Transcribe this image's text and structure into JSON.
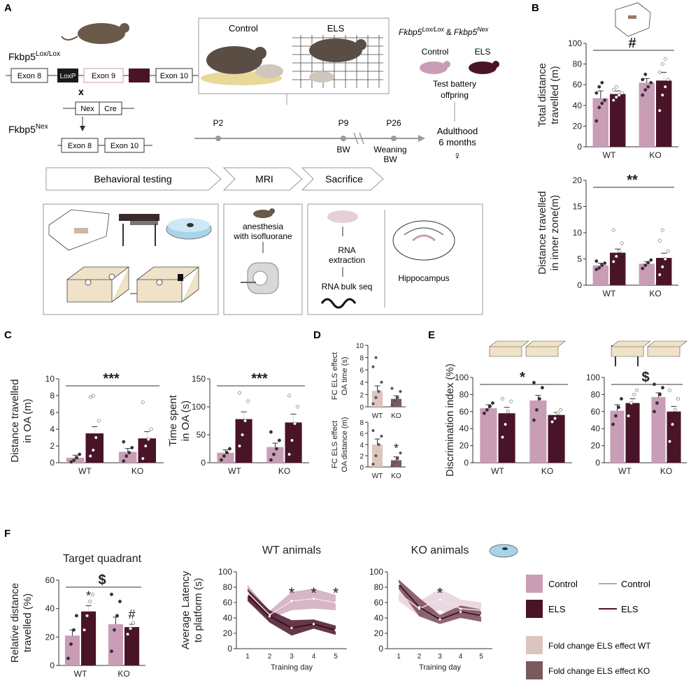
{
  "panel_letters": [
    "A",
    "B",
    "C",
    "D",
    "E",
    "F"
  ],
  "colors": {
    "control": "#c99db5",
    "els": "#4a1428",
    "fc_wt": "#dcc5bd",
    "fc_ko": "#7a5a5f",
    "line": "#333333",
    "grey": "#b5b5b5"
  },
  "panelA": {
    "lox_label": "Fkbp5",
    "lox_sup": "Lox/Lox",
    "exons_lox": [
      "Exon 8",
      "LoxP",
      "Exon 9",
      "Exon 10"
    ],
    "cross": "x",
    "cre": [
      "Nex",
      "Cre"
    ],
    "nex_label": "Fkbp5",
    "nex_sup": "Nex",
    "exons_nex": [
      "Exon 8",
      "Exon 10"
    ],
    "box_control": "Control",
    "box_els": "ELS",
    "genotype_line": [
      "Fkbp5",
      "Lox/Lox",
      "&",
      "Fkbp5",
      "Nex"
    ],
    "offspring_control": "Control",
    "offspring_els": "ELS",
    "test_battery": [
      "Test battery",
      "offpring"
    ],
    "timeline": [
      "P2",
      "P9",
      "P26"
    ],
    "timeline_sub": [
      "BW",
      "Weaning",
      "BW"
    ],
    "adulthood": [
      "Adulthood",
      "6 months",
      "♀"
    ],
    "stages": [
      "Behavioral testing",
      "MRI",
      "Sacrifice"
    ],
    "mri_text": [
      "anesthesia",
      "with isofluorane"
    ],
    "sac_text": [
      "RNA",
      "extraction",
      "RNA bulk seq"
    ],
    "hippocampus": "Hippocampus"
  },
  "chart_data": [
    {
      "id": "B1",
      "type": "bar",
      "ylabel": [
        "Total distance",
        "travelled (m)"
      ],
      "ylim": [
        0,
        100
      ],
      "ticks": [
        0,
        20,
        40,
        60,
        80,
        100
      ],
      "categories": [
        "WT",
        "KO"
      ],
      "series": [
        {
          "values": [
            47,
            51
          ]
        },
        {
          "values": [
            62,
            64
          ]
        }
      ],
      "errors": [
        [
          7,
          3
        ],
        [
          4,
          8
        ]
      ],
      "points": [
        [
          [
            25,
            38,
            42,
            45,
            52,
            58,
            62
          ],
          [
            45,
            48,
            50,
            52,
            55,
            58
          ]
        ],
        [
          [
            50,
            55,
            58,
            62,
            65,
            70
          ],
          [
            35,
            50,
            58,
            65,
            72,
            80,
            85
          ]
        ]
      ],
      "annotation": "#"
    },
    {
      "id": "B2",
      "type": "bar",
      "ylabel": [
        "Distance travelled",
        "in inner zone(m)"
      ],
      "ylim": [
        0,
        20
      ],
      "ticks": [
        0,
        5,
        10,
        15,
        20
      ],
      "categories": [
        "WT",
        "KO"
      ],
      "series": [
        {
          "values": [
            3.8,
            6.2
          ]
        },
        {
          "values": [
            4.1,
            5.2
          ]
        }
      ],
      "errors": [
        [
          0.4,
          0.7
        ],
        [
          0.4,
          0.9
        ]
      ],
      "points": [
        [
          [
            3,
            3.3,
            3.8,
            4.2,
            4.6
          ],
          [
            4.5,
            5.5,
            6.5,
            8,
            10.5
          ]
        ],
        [
          [
            3.2,
            3.8,
            4.3,
            4.8
          ],
          [
            2,
            3.5,
            5,
            6.5,
            8.5,
            10.5
          ]
        ]
      ],
      "annotation": "**"
    },
    {
      "id": "C1",
      "type": "bar",
      "ylabel": [
        "Distance travelled",
        "in OA (m)"
      ],
      "ylim": [
        0,
        10
      ],
      "ticks": [
        0,
        2,
        4,
        6,
        8,
        10
      ],
      "categories": [
        "WT",
        "KO"
      ],
      "series": [
        {
          "values": [
            0.6,
            3.5
          ]
        },
        {
          "values": [
            1.3,
            2.9
          ]
        }
      ],
      "errors": [
        [
          0.3,
          0.8
        ],
        [
          0.4,
          0.8
        ]
      ],
      "points": [
        [
          [
            0.1,
            0.3,
            0.6,
            1.0
          ],
          [
            0.8,
            1.5,
            3,
            5,
            7.8,
            8
          ]
        ],
        [
          [
            0.2,
            0.8,
            1.2,
            1.8,
            2.5
          ],
          [
            0.5,
            2,
            2.8,
            4,
            7.2
          ]
        ]
      ],
      "annotation": "***"
    },
    {
      "id": "C2",
      "type": "bar",
      "ylabel": [
        "Time spent",
        "in OA (s)"
      ],
      "ylim": [
        0,
        150
      ],
      "ticks": [
        0,
        50,
        100,
        150
      ],
      "categories": [
        "WT",
        "KO"
      ],
      "series": [
        {
          "values": [
            18,
            78
          ]
        },
        {
          "values": [
            28,
            72
          ]
        }
      ],
      "errors": [
        [
          5,
          13
        ],
        [
          7,
          15
        ]
      ],
      "points": [
        [
          [
            5,
            12,
            18,
            25
          ],
          [
            30,
            50,
            75,
            110,
            125
          ]
        ],
        [
          [
            5,
            15,
            25,
            40,
            55
          ],
          [
            15,
            40,
            70,
            100,
            120
          ]
        ]
      ],
      "annotation": "***"
    },
    {
      "id": "D1",
      "type": "bar",
      "ylabel": [
        "FC ELS effect",
        "OA time (s)"
      ],
      "ylim": [
        0,
        10
      ],
      "ticks": [
        0,
        2,
        4,
        6,
        8,
        10
      ],
      "categories": [
        "WT",
        "KO"
      ],
      "series": [
        {
          "values": [
            2.6,
            1.3
          ]
        }
      ],
      "errors": [
        [
          0.8,
          0.5
        ]
      ],
      "points": [
        [
          [
            0.5,
            1.5,
            2.5,
            4,
            6.5,
            8
          ],
          [
            0.3,
            1,
            1.5,
            2.5,
            3
          ]
        ]
      ],
      "annotation": ""
    },
    {
      "id": "D2",
      "type": "bar",
      "ylabel": [
        "FC ELS effect",
        "OA distance (m)"
      ],
      "ylim": [
        0,
        8
      ],
      "ticks": [
        0,
        2,
        4,
        6,
        8
      ],
      "categories": [
        "WT",
        "KO"
      ],
      "series": [
        {
          "values": [
            4.0,
            1.2
          ]
        }
      ],
      "errors": [
        [
          1.0,
          0.6
        ]
      ],
      "points": [
        [
          [
            0.5,
            2,
            4,
            5.5,
            6.5
          ],
          [
            0.2,
            0.8,
            1.5,
            2.5
          ]
        ]
      ],
      "annotation": "*"
    },
    {
      "id": "E1",
      "type": "bar",
      "ylabel": [
        "Discrimination index (%)"
      ],
      "ylim": [
        0,
        100
      ],
      "ticks": [
        0,
        20,
        40,
        60,
        80,
        100
      ],
      "categories": [
        "WT",
        "KO"
      ],
      "series": [
        {
          "values": [
            64,
            58
          ]
        },
        {
          "values": [
            73,
            56
          ]
        }
      ],
      "errors": [
        [
          4,
          7
        ],
        [
          6,
          3
        ]
      ],
      "points": [
        [
          [
            58,
            62,
            66,
            70
          ],
          [
            30,
            45,
            60,
            72,
            75
          ]
        ],
        [
          [
            50,
            62,
            75,
            88,
            94
          ],
          [
            48,
            52,
            58,
            62
          ]
        ]
      ],
      "annotation": "*"
    },
    {
      "id": "E2",
      "type": "bar",
      "ylabel": [],
      "ylim": [
        0,
        100
      ],
      "ticks": [
        0,
        20,
        40,
        60,
        80,
        100
      ],
      "categories": [
        "WT",
        "KO"
      ],
      "series": [
        {
          "values": [
            61,
            70
          ]
        },
        {
          "values": [
            77,
            60
          ]
        }
      ],
      "errors": [
        [
          7,
          5
        ],
        [
          5,
          6
        ]
      ],
      "points": [
        [
          [
            45,
            55,
            65,
            75
          ],
          [
            55,
            70,
            80,
            85
          ]
        ],
        [
          [
            60,
            70,
            80,
            88,
            92
          ],
          [
            25,
            45,
            62,
            75,
            85
          ]
        ]
      ],
      "annotation": "$"
    },
    {
      "id": "F1",
      "type": "bar",
      "title": "Target quadrant",
      "ylabel": [
        "Relative distance",
        "travelled (%)"
      ],
      "ylim": [
        0,
        60
      ],
      "ticks": [
        0,
        20,
        40,
        60
      ],
      "categories": [
        "WT",
        "KO"
      ],
      "series": [
        {
          "values": [
            21,
            38
          ]
        },
        {
          "values": [
            29,
            27
          ]
        }
      ],
      "errors": [
        [
          4,
          4
        ],
        [
          5,
          2
        ]
      ],
      "points": [
        [
          [
            5,
            15,
            25,
            35
          ],
          [
            25,
            35,
            45,
            50
          ]
        ],
        [
          [
            10,
            25,
            35,
            45,
            50
          ],
          [
            22,
            26,
            30
          ]
        ]
      ],
      "annotation": "$",
      "bar_marks": [
        "",
        "*",
        "",
        "#"
      ]
    },
    {
      "id": "F2",
      "type": "line",
      "title": "WT animals",
      "xlabel": "Training day",
      "ylabel": [
        "Average Latency",
        "to platform (s)"
      ],
      "ylim": [
        0,
        100
      ],
      "ticks": [
        0,
        20,
        40,
        60,
        80,
        100
      ],
      "x": [
        1,
        2,
        3,
        4,
        5
      ],
      "series": [
        {
          "values": [
            73,
            44,
            62,
            65,
            60
          ],
          "band": [
            10,
            5,
            12,
            13,
            10
          ]
        },
        {
          "values": [
            70,
            42,
            27,
            32,
            24
          ],
          "band": [
            8,
            8,
            10,
            6,
            6
          ]
        }
      ],
      "annotation": [
        "",
        "",
        "*",
        "*",
        "*"
      ]
    },
    {
      "id": "F3",
      "type": "line",
      "title": "KO animals",
      "xlabel": "Training day",
      "ylabel": [],
      "ylim": [
        0,
        100
      ],
      "ticks": [
        0,
        20,
        40,
        60,
        80,
        100
      ],
      "x": [
        1,
        2,
        3,
        4,
        5
      ],
      "series": [
        {
          "values": [
            72,
            52,
            64,
            52,
            50
          ],
          "band": [
            10,
            10,
            14,
            12,
            10
          ]
        },
        {
          "values": [
            84,
            54,
            38,
            48,
            43
          ],
          "band": [
            6,
            12,
            6,
            8,
            8
          ]
        }
      ],
      "annotation": [
        "",
        "",
        "*",
        "",
        ""
      ]
    }
  ],
  "legend": {
    "control_box": "Control",
    "els_box": "ELS",
    "control_line": "Control",
    "els_line": "ELS",
    "fc_wt": "Fold change ELS effect WT",
    "fc_ko": "Fold change ELS effect KO"
  }
}
